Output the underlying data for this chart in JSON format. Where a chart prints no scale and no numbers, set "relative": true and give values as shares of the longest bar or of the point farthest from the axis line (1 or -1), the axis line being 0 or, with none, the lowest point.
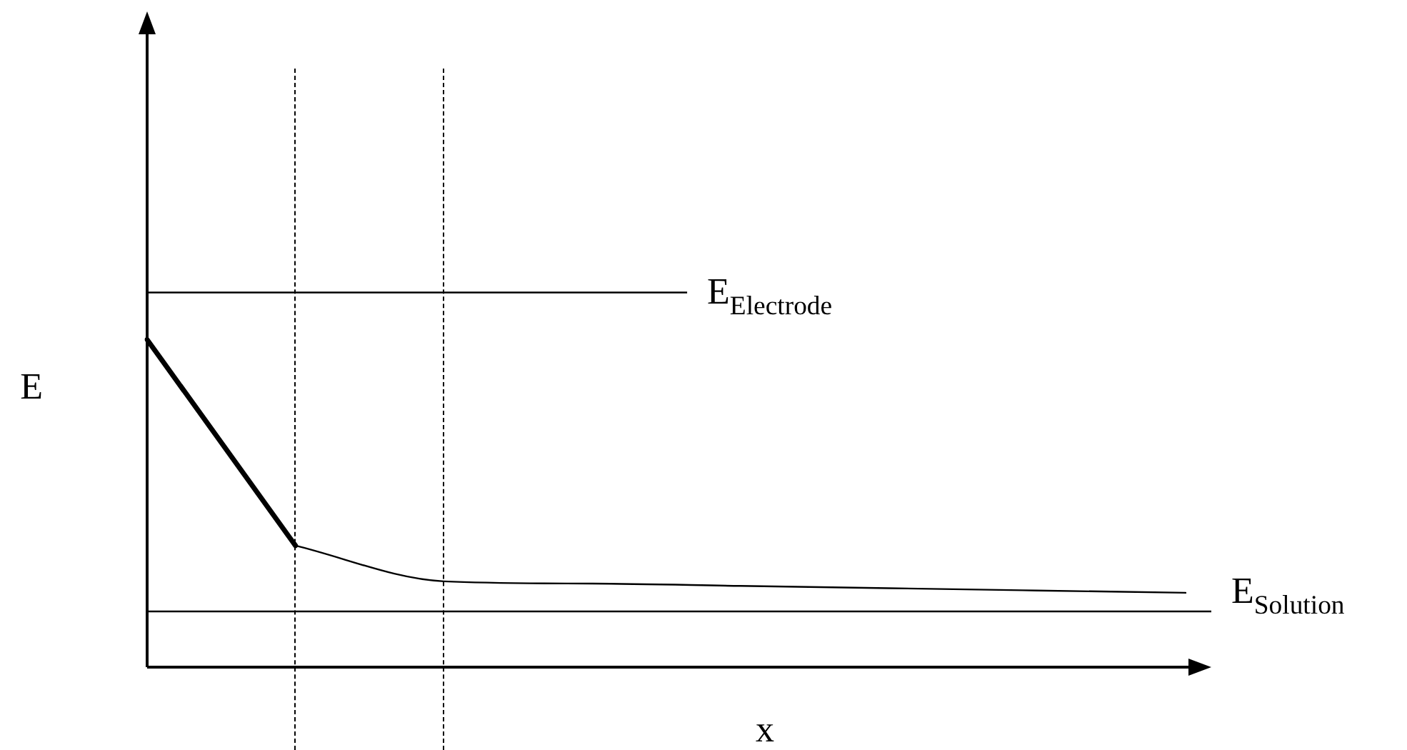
{
  "chart_data": {
    "type": "line",
    "relative": true,
    "xlabel": "x",
    "ylabel": "E",
    "tick_labels": false,
    "categories": [
      null,
      null,
      null,
      null,
      null,
      null,
      null,
      null
    ],
    "series": [
      {
        "color": "#000000",
        "values": [
          1,
          0.371,
          null,
          null,
          null,
          null,
          null,
          null
        ]
      },
      {
        "color": "#000000",
        "values": [
          null,
          0.371,
          0.262,
          0.255,
          0.248,
          0.241,
          0.234,
          0.227
        ]
      }
    ],
    "ref_lines": [
      {
        "axis": "y",
        "value": 1.144,
        "label": "E$_{Electrode}$"
      },
      {
        "axis": "y",
        "value": 0.17,
        "label": "E$_{Solution}$"
      }
    ]
  }
}
